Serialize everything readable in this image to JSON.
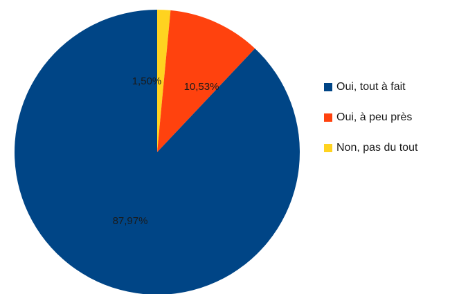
{
  "chart_data": {
    "type": "pie",
    "title": "",
    "slices": [
      {
        "label": "Non, pas du tout",
        "value": 1.5,
        "display": "1,50%",
        "color": "#ffd320"
      },
      {
        "label": "Oui, à peu près",
        "value": 10.53,
        "display": "10,53%",
        "color": "#ff420e"
      },
      {
        "label": "Oui, tout à fait",
        "value": 87.97,
        "display": "87,97%",
        "color": "#004586"
      }
    ],
    "legend": {
      "placement": "right",
      "entries": [
        {
          "label": "Oui, tout à fait",
          "color": "#004586"
        },
        {
          "label": "Oui, à peu près",
          "color": "#ff420e"
        },
        {
          "label": "Non, pas du tout",
          "color": "#ffd320"
        }
      ]
    }
  }
}
